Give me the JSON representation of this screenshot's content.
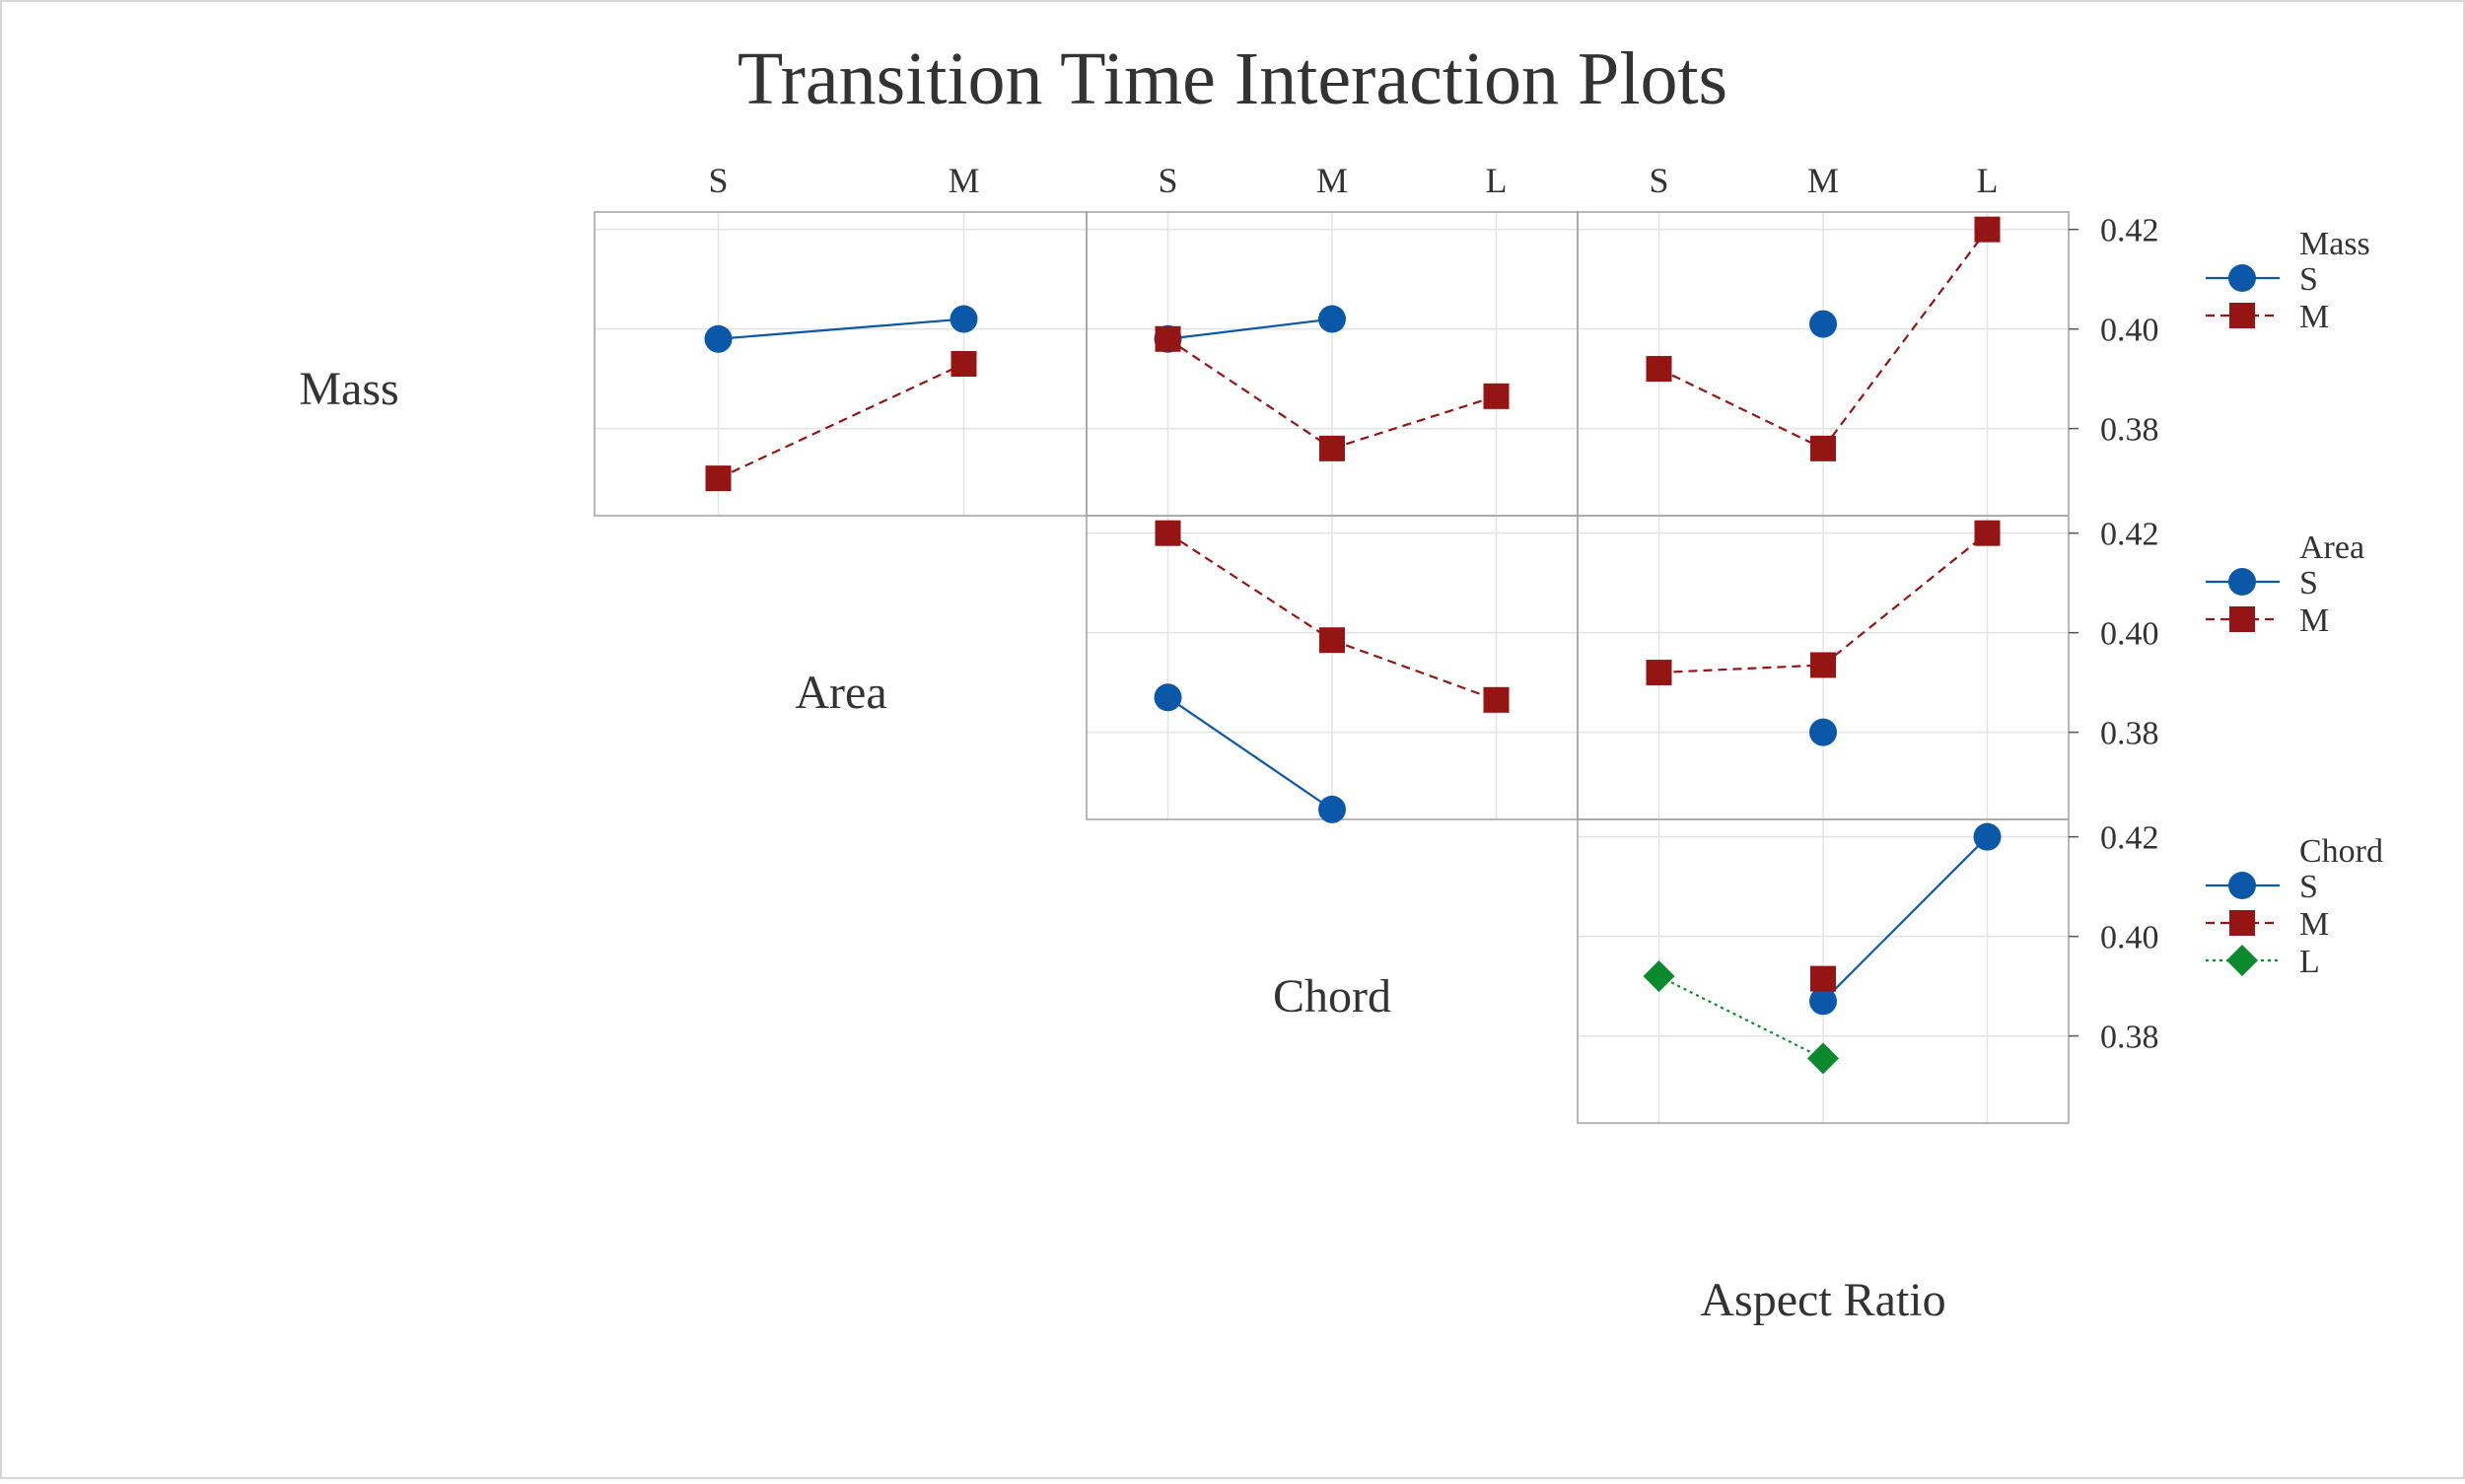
{
  "chart_data": {
    "type": "line",
    "title": "Transition Time Interaction Plots",
    "factors": [
      {
        "name": "Mass",
        "levels": [
          "S",
          "M"
        ]
      },
      {
        "name": "Area",
        "levels": [
          "S",
          "M",
          "L"
        ]
      },
      {
        "name": "Chord",
        "levels": [
          "S",
          "M",
          "L"
        ]
      },
      {
        "name": "Aspect Ratio",
        "levels": [
          "S",
          "M",
          "L"
        ]
      }
    ],
    "y_ticks": [
      "0.42",
      "0.40",
      "0.38"
    ],
    "ylim": [
      0.3625,
      0.4235
    ],
    "grid": true,
    "legend_position": "right",
    "series_styles": {
      "S": {
        "color": "#0b58a8",
        "marker": "circle",
        "dash": "solid"
      },
      "M": {
        "color": "#951515",
        "marker": "square",
        "dash": "dashed"
      },
      "L": {
        "color": "#0a8a2c",
        "marker": "diamond",
        "dash": "dotted"
      }
    },
    "panels": [
      {
        "row": "Mass",
        "col": "Mass",
        "categories": [
          "S",
          "M"
        ],
        "series": [
          {
            "name": "S",
            "values": [
              0.398,
              0.402
            ]
          },
          {
            "name": "M",
            "values": [
              0.37,
              0.393
            ]
          }
        ]
      },
      {
        "row": "Mass",
        "col": "Area",
        "categories": [
          "S",
          "M",
          "L"
        ],
        "series": [
          {
            "name": "S",
            "values": [
              0.398,
              0.402,
              null
            ]
          },
          {
            "name": "M",
            "values": [
              0.398,
              0.376,
              0.3865
            ]
          }
        ]
      },
      {
        "row": "Mass",
        "col": "Chord",
        "categories": [
          "S",
          "M",
          "L"
        ],
        "series": [
          {
            "name": "S",
            "values": [
              null,
              0.401,
              null
            ]
          },
          {
            "name": "M",
            "values": [
              0.392,
              0.376,
              0.42
            ]
          }
        ]
      },
      {
        "row": "Area",
        "col": "Area",
        "categories": [
          "S",
          "M",
          "L"
        ],
        "series": [
          {
            "name": "S",
            "values": [
              0.387,
              0.3645,
              null
            ]
          },
          {
            "name": "M",
            "values": [
              0.42,
              0.3985,
              0.3865
            ]
          }
        ]
      },
      {
        "row": "Area",
        "col": "Chord",
        "categories": [
          "S",
          "M",
          "L"
        ],
        "series": [
          {
            "name": "S",
            "values": [
              null,
              0.38,
              null
            ]
          },
          {
            "name": "M",
            "values": [
              0.392,
              0.3935,
              0.42
            ]
          }
        ]
      },
      {
        "row": "Chord",
        "col": "Chord",
        "categories": [
          "S",
          "M",
          "L"
        ],
        "series": [
          {
            "name": "S",
            "values": [
              null,
              0.387,
              0.42
            ]
          },
          {
            "name": "M",
            "values": [
              null,
              0.3915,
              null
            ]
          },
          {
            "name": "L",
            "values": [
              0.392,
              0.3755,
              null
            ]
          }
        ]
      }
    ],
    "legends": [
      {
        "title": "Mass",
        "entries": [
          "S",
          "M"
        ]
      },
      {
        "title": "Area",
        "entries": [
          "S",
          "M"
        ]
      },
      {
        "title": "Chord",
        "entries": [
          "S",
          "M",
          "L"
        ]
      }
    ]
  }
}
